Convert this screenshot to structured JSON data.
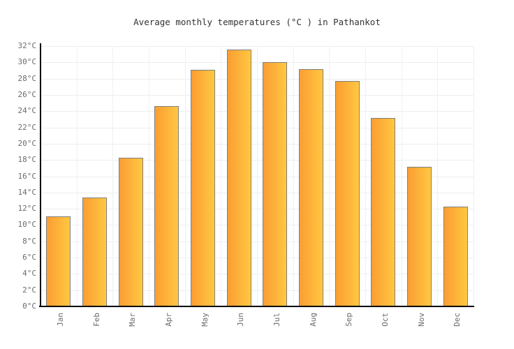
{
  "chart_data": {
    "type": "bar",
    "title": "Average monthly temperatures (°C ) in Pathankot",
    "categories": [
      "Jan",
      "Feb",
      "Mar",
      "Apr",
      "May",
      "Jun",
      "Jul",
      "Aug",
      "Sep",
      "Oct",
      "Nov",
      "Dec"
    ],
    "values": [
      11.1,
      13.4,
      18.3,
      24.6,
      29.1,
      31.6,
      30.0,
      29.2,
      27.7,
      23.2,
      17.2,
      12.3
    ],
    "xlabel": "",
    "ylabel": "",
    "ylim": [
      0,
      32
    ],
    "ytick_step": 2,
    "ytick_suffix": "°C",
    "grid": true,
    "legend_position": "none",
    "colors": {
      "bar_gradient_left": "#FB9D33",
      "bar_gradient_right": "#FFC841",
      "bar_border": "#7F7F7F",
      "axis": "#000000",
      "grid_horizontal": "#EEEEEE",
      "grid_vertical": "#F0F0F0",
      "tick_label": "#6B6B6B",
      "title": "#333333",
      "background": "#FFFFFF"
    }
  }
}
